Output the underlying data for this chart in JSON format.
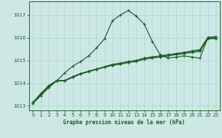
{
  "title": "Graphe pression niveau de la mer (hPa)",
  "background_color": "#cde8e4",
  "grid_color": "#b0d8d0",
  "line_color": "#1a5c28",
  "xlim": [
    -0.5,
    23.5
  ],
  "ylim": [
    1012.8,
    1017.6
  ],
  "yticks": [
    1013,
    1014,
    1015,
    1016,
    1017
  ],
  "xticks": [
    0,
    1,
    2,
    3,
    4,
    5,
    6,
    7,
    8,
    9,
    10,
    11,
    12,
    13,
    14,
    15,
    16,
    17,
    18,
    19,
    20,
    21,
    22,
    23
  ],
  "series_main": {
    "x": [
      0,
      1,
      2,
      3,
      4,
      5,
      6,
      7,
      8,
      9,
      10,
      11,
      12,
      13,
      14,
      15,
      16,
      17,
      18,
      19,
      20,
      21,
      22,
      23
    ],
    "y": [
      1013.1,
      1013.45,
      1013.8,
      1014.1,
      1014.45,
      1014.75,
      1014.95,
      1015.2,
      1015.55,
      1015.95,
      1016.75,
      1017.0,
      1017.2,
      1016.95,
      1016.6,
      1015.85,
      1015.25,
      1015.1,
      1015.15,
      1015.2,
      1015.15,
      1015.1,
      1016.0,
      1015.95
    ]
  },
  "series_flat1": {
    "x": [
      0,
      1,
      2,
      3,
      4,
      5,
      6,
      7,
      8,
      9,
      10,
      11,
      12,
      13,
      14,
      15,
      16,
      17,
      18,
      19,
      20,
      21,
      22,
      23
    ],
    "y": [
      1013.1,
      1013.5,
      1013.85,
      1014.1,
      1014.1,
      1014.25,
      1014.4,
      1014.5,
      1014.6,
      1014.7,
      1014.78,
      1014.83,
      1014.9,
      1014.95,
      1015.05,
      1015.1,
      1015.15,
      1015.2,
      1015.25,
      1015.3,
      1015.35,
      1015.4,
      1015.95,
      1015.97
    ]
  },
  "series_flat2": {
    "x": [
      0,
      1,
      2,
      3,
      4,
      5,
      6,
      7,
      8,
      9,
      10,
      11,
      12,
      13,
      14,
      15,
      16,
      17,
      18,
      19,
      20,
      21,
      22,
      23
    ],
    "y": [
      1013.15,
      1013.55,
      1013.9,
      1014.12,
      1014.12,
      1014.28,
      1014.42,
      1014.52,
      1014.62,
      1014.72,
      1014.82,
      1014.88,
      1014.95,
      1015.0,
      1015.1,
      1015.15,
      1015.2,
      1015.25,
      1015.3,
      1015.35,
      1015.4,
      1015.45,
      1015.98,
      1016.0
    ]
  },
  "series_flat3": {
    "x": [
      3,
      4,
      5,
      6,
      7,
      8,
      9,
      10,
      11,
      12,
      13,
      14,
      15,
      16,
      17,
      18,
      19,
      20,
      21,
      22,
      23
    ],
    "y": [
      1014.1,
      1014.1,
      1014.28,
      1014.42,
      1014.52,
      1014.62,
      1014.72,
      1014.82,
      1014.88,
      1014.95,
      1015.0,
      1015.1,
      1015.15,
      1015.2,
      1015.25,
      1015.3,
      1015.35,
      1015.42,
      1015.47,
      1016.02,
      1016.05
    ]
  }
}
